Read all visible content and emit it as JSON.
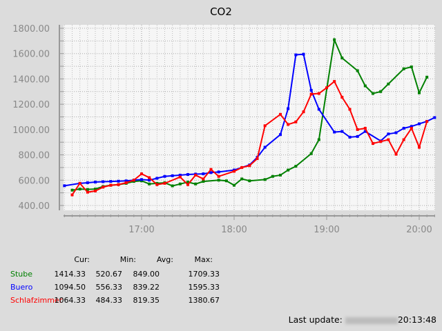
{
  "chart_data": {
    "type": "line",
    "title": "CO2",
    "ylim": [
      300,
      1850
    ],
    "yticks": [
      "400.00",
      "600.00",
      "800.00",
      "1000.00",
      "1200.00",
      "1400.00",
      "1600.00",
      "1800.00"
    ],
    "xticks": [
      "17:00",
      "18:00",
      "19:00",
      "20:00"
    ],
    "grid": true,
    "series": [
      {
        "name": "Stube",
        "color": "#008000",
        "points": [
          [
            "16:15",
            521
          ],
          [
            "16:20",
            530
          ],
          [
            "16:25",
            527
          ],
          [
            "16:30",
            530
          ],
          [
            "16:35",
            550
          ],
          [
            "16:40",
            560
          ],
          [
            "16:45",
            565
          ],
          [
            "16:50",
            575
          ],
          [
            "16:55",
            590
          ],
          [
            "17:00",
            595
          ],
          [
            "17:05",
            570
          ],
          [
            "17:10",
            575
          ],
          [
            "17:15",
            580
          ],
          [
            "17:20",
            555
          ],
          [
            "17:25",
            570
          ],
          [
            "17:30",
            585
          ],
          [
            "17:35",
            570
          ],
          [
            "17:40",
            590
          ],
          [
            "17:50",
            600
          ],
          [
            "17:55",
            595
          ],
          [
            "18:00",
            560
          ],
          [
            "18:05",
            610
          ],
          [
            "18:10",
            595
          ],
          [
            "18:20",
            605
          ],
          [
            "18:25",
            630
          ],
          [
            "18:30",
            640
          ],
          [
            "18:35",
            680
          ],
          [
            "18:40",
            710
          ],
          [
            "18:50",
            810
          ],
          [
            "18:55",
            920
          ],
          [
            "19:05",
            1709
          ],
          [
            "19:10",
            1565
          ],
          [
            "19:20",
            1465
          ],
          [
            "19:25",
            1345
          ],
          [
            "19:30",
            1285
          ],
          [
            "19:35",
            1300
          ],
          [
            "19:40",
            1360
          ],
          [
            "19:50",
            1480
          ],
          [
            "19:55",
            1495
          ],
          [
            "20:00",
            1290
          ],
          [
            "20:05",
            1414
          ]
        ]
      },
      {
        "name": "Buero",
        "color": "#0000ff",
        "points": [
          [
            "16:10",
            556
          ],
          [
            "16:20",
            575
          ],
          [
            "16:25",
            580
          ],
          [
            "16:30",
            585
          ],
          [
            "16:35",
            588
          ],
          [
            "16:40",
            590
          ],
          [
            "16:45",
            592
          ],
          [
            "16:50",
            595
          ],
          [
            "16:55",
            600
          ],
          [
            "17:00",
            605
          ],
          [
            "17:05",
            600
          ],
          [
            "17:10",
            615
          ],
          [
            "17:15",
            630
          ],
          [
            "17:20",
            635
          ],
          [
            "17:25",
            640
          ],
          [
            "17:30",
            645
          ],
          [
            "17:35",
            648
          ],
          [
            "17:40",
            650
          ],
          [
            "17:45",
            660
          ],
          [
            "17:50",
            665
          ],
          [
            "18:00",
            680
          ],
          [
            "18:10",
            720
          ],
          [
            "18:15",
            780
          ],
          [
            "18:20",
            860
          ],
          [
            "18:30",
            960
          ],
          [
            "18:35",
            1165
          ],
          [
            "18:40",
            1590
          ],
          [
            "18:45",
            1595
          ],
          [
            "18:50",
            1310
          ],
          [
            "18:55",
            1160
          ],
          [
            "19:05",
            980
          ],
          [
            "19:10",
            985
          ],
          [
            "19:15",
            940
          ],
          [
            "19:20",
            945
          ],
          [
            "19:25",
            985
          ],
          [
            "19:35",
            910
          ],
          [
            "19:40",
            965
          ],
          [
            "19:45",
            975
          ],
          [
            "19:50",
            1010
          ],
          [
            "19:55",
            1025
          ],
          [
            "20:00",
            1045
          ],
          [
            "20:05",
            1065
          ],
          [
            "20:10",
            1094.5
          ]
        ]
      },
      {
        "name": "Schlafzimmer",
        "color": "#ff0000",
        "points": [
          [
            "16:15",
            484
          ],
          [
            "16:20",
            575
          ],
          [
            "16:25",
            505
          ],
          [
            "16:30",
            515
          ],
          [
            "16:35",
            545
          ],
          [
            "16:40",
            560
          ],
          [
            "16:45",
            565
          ],
          [
            "16:50",
            580
          ],
          [
            "16:55",
            600
          ],
          [
            "17:00",
            650
          ],
          [
            "17:05",
            620
          ],
          [
            "17:10",
            565
          ],
          [
            "17:15",
            575
          ],
          [
            "17:25",
            625
          ],
          [
            "17:30",
            565
          ],
          [
            "17:35",
            640
          ],
          [
            "17:40",
            610
          ],
          [
            "17:45",
            685
          ],
          [
            "17:50",
            630
          ],
          [
            "18:00",
            670
          ],
          [
            "18:05",
            700
          ],
          [
            "18:10",
            715
          ],
          [
            "18:15",
            770
          ],
          [
            "18:20",
            1030
          ],
          [
            "18:30",
            1120
          ],
          [
            "18:35",
            1040
          ],
          [
            "18:40",
            1060
          ],
          [
            "18:45",
            1140
          ],
          [
            "18:50",
            1280
          ],
          [
            "18:55",
            1285
          ],
          [
            "19:00",
            1330
          ],
          [
            "19:05",
            1380
          ],
          [
            "19:10",
            1255
          ],
          [
            "19:15",
            1160
          ],
          [
            "19:20",
            1000
          ],
          [
            "19:25",
            1010
          ],
          [
            "19:30",
            890
          ],
          [
            "19:35",
            905
          ],
          [
            "19:40",
            920
          ],
          [
            "19:45",
            805
          ],
          [
            "19:50",
            920
          ],
          [
            "19:55",
            1010
          ],
          [
            "20:00",
            860
          ],
          [
            "20:05",
            1064
          ]
        ]
      }
    ]
  },
  "legend": {
    "headers": [
      "Cur:",
      "Min:",
      "Avg:",
      "Max:"
    ],
    "rows": [
      {
        "name": "Stube",
        "values": [
          "1414.33",
          "520.67",
          "849.00",
          "1709.33"
        ]
      },
      {
        "name": "Buero",
        "values": [
          "1094.50",
          "556.33",
          "839.22",
          "1595.33"
        ]
      },
      {
        "name": "Schlafzimmer",
        "values": [
          "1064.33",
          "484.33",
          "819.35",
          "1380.67"
        ]
      }
    ]
  },
  "footer": {
    "label": "Last update:",
    "time": "20:13:48"
  }
}
